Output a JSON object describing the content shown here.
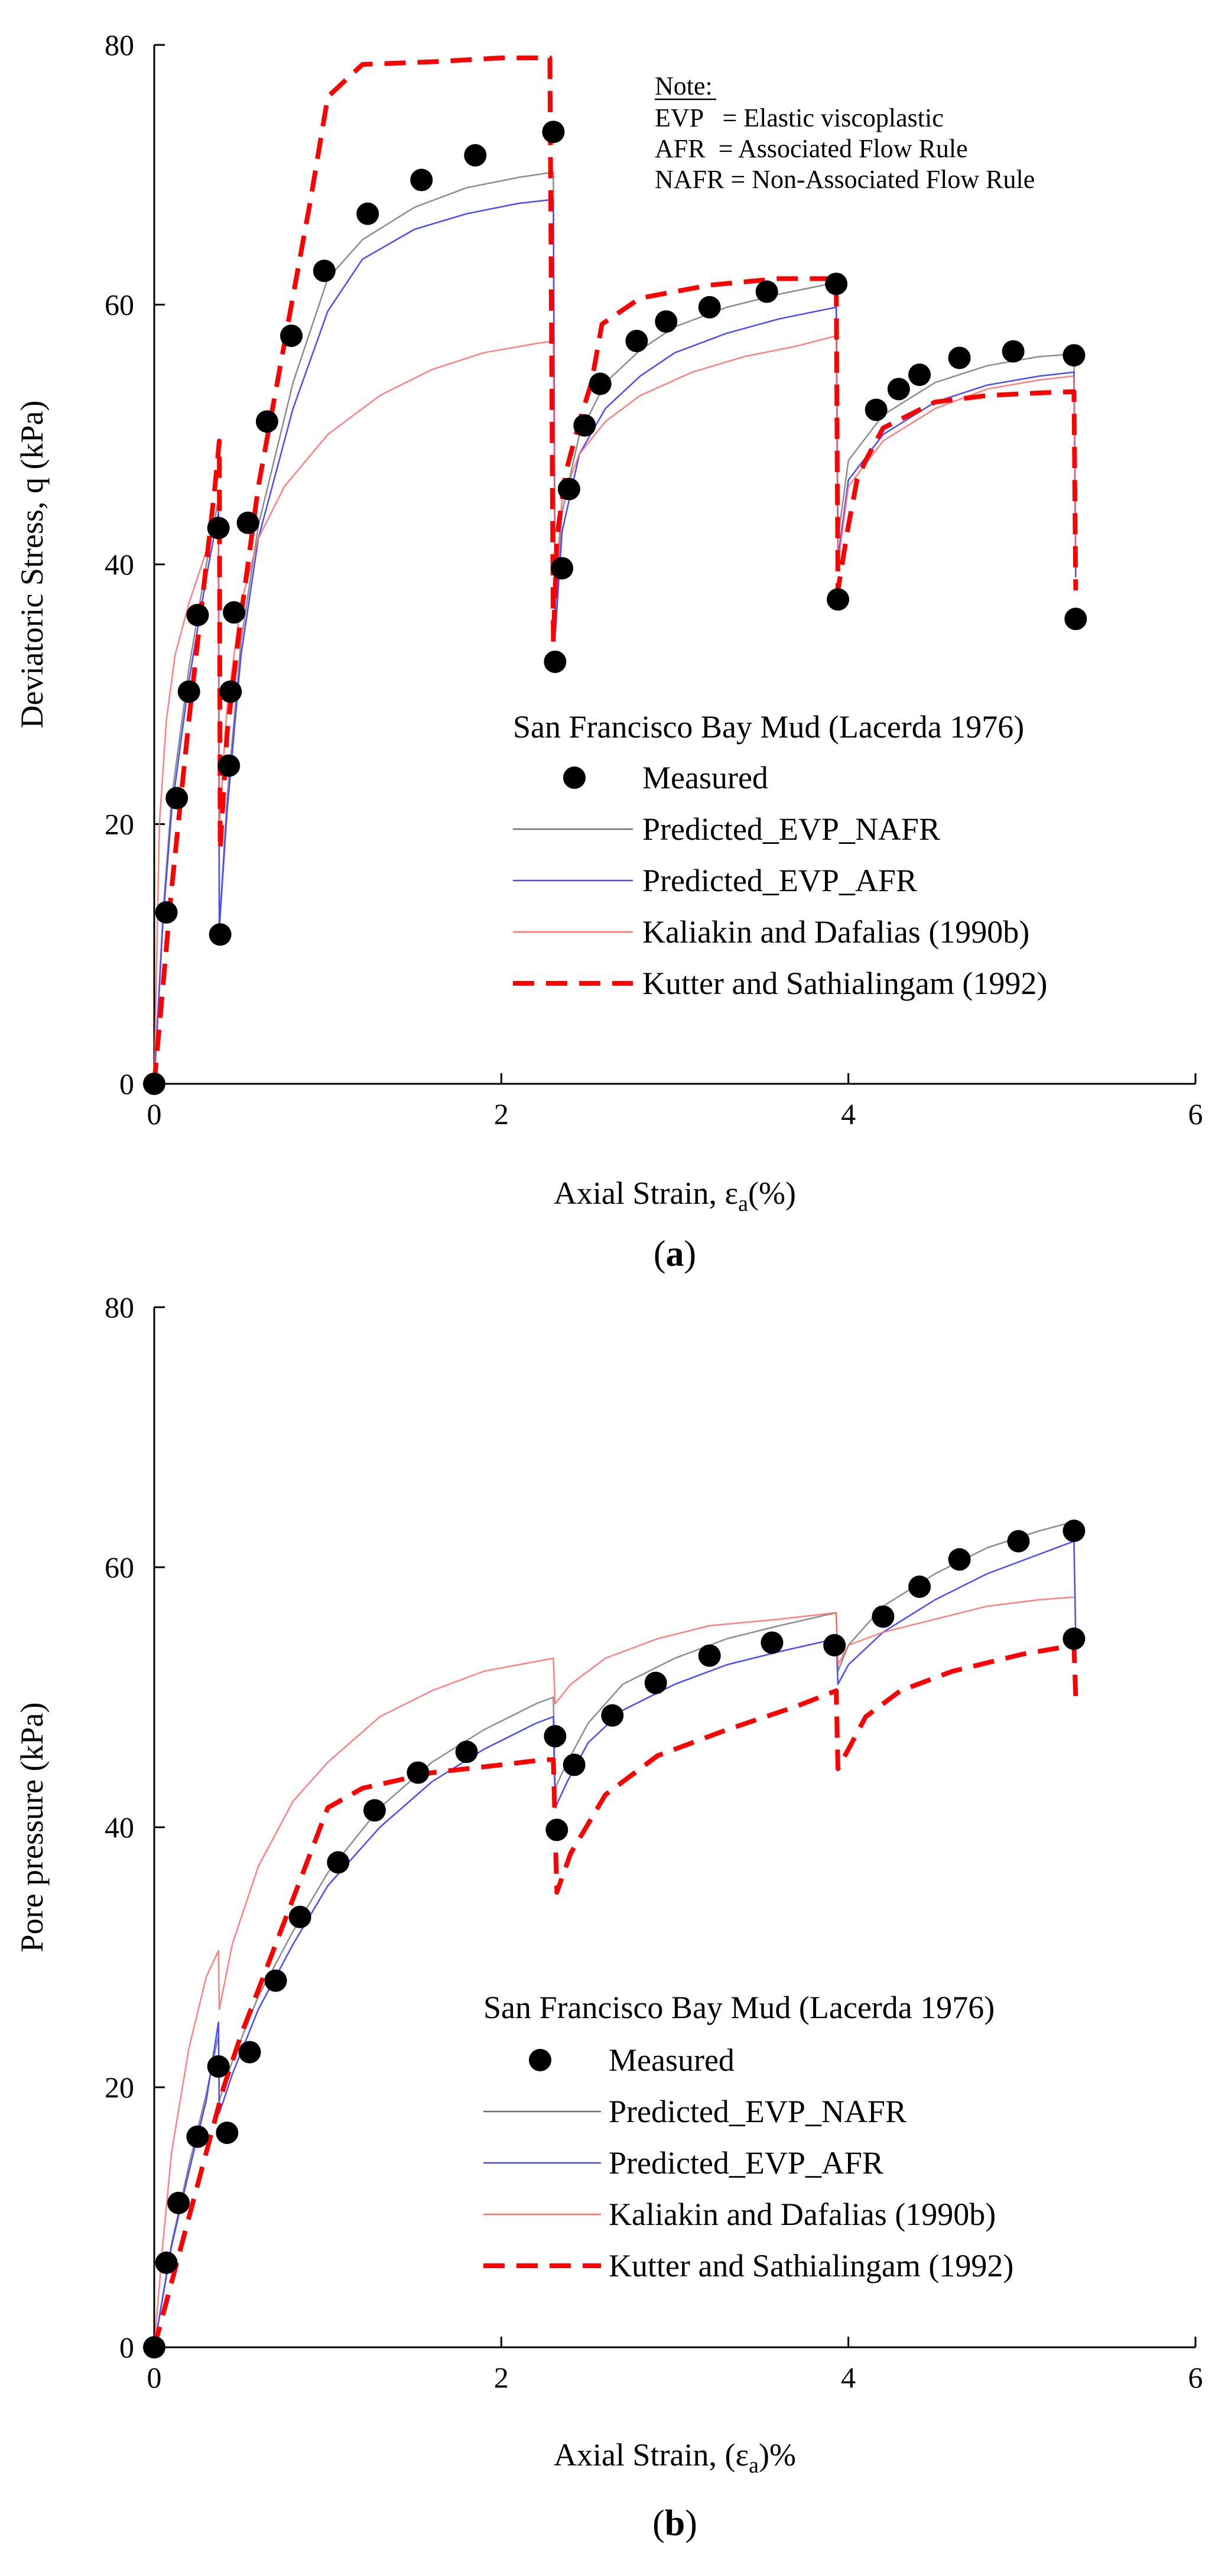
{
  "colors": {
    "measured": "#000000",
    "evp_nafr": "#707070",
    "evp_afr": "#4a4aff",
    "kaliakin": "#ff6a6a",
    "kutter": "#ff0000"
  },
  "chart_data": [
    {
      "id": "a",
      "type": "line",
      "panel_label": "(a)",
      "panel_letter": "a",
      "xlabel_prefix": "Axial Strain, ε",
      "xlabel_sub": "a",
      "xlabel_suffix": "(%)",
      "ylabel": "Deviatoric Stress, q (kPa)",
      "xlim": [
        0,
        6
      ],
      "ylim": [
        0,
        80
      ],
      "xticks": [
        0,
        2,
        4,
        6
      ],
      "yticks": [
        0,
        20,
        40,
        60,
        80
      ],
      "note": {
        "title": "Note:",
        "lines": [
          "EVP   = Elastic viscoplastic",
          "AFR  = Associated Flow Rule",
          "NAFR = Non-Associated Flow Rule"
        ]
      },
      "legend_title": "San Francisco Bay Mud (Lacerda 1976)",
      "series": [
        {
          "name": "Measured",
          "style": "marker",
          "color_key": "measured",
          "x": [
            0,
            0.07,
            0.13,
            0.2,
            0.25,
            0.37,
            0.38,
            0.43,
            0.44,
            0.46,
            0.54,
            0.65,
            0.79,
            0.98,
            1.23,
            1.54,
            1.85,
            2.3,
            2.31,
            2.35,
            2.39,
            2.48,
            2.57,
            2.78,
            2.95,
            3.2,
            3.53,
            3.93,
            3.94,
            4.16,
            4.29,
            4.41,
            4.64,
            4.95,
            5.3,
            5.31
          ],
          "y": [
            0,
            13.2,
            22,
            30.2,
            36.1,
            42.8,
            11.5,
            24.5,
            30.2,
            36.3,
            43.2,
            51,
            57.6,
            62.6,
            67,
            69.6,
            71.5,
            73.3,
            32.5,
            39.7,
            45.8,
            50.7,
            53.9,
            57.2,
            58.7,
            59.8,
            61,
            61.6,
            37.3,
            51.9,
            53.5,
            54.6,
            55.9,
            56.4,
            56.1,
            35.8
          ]
        },
        {
          "name": "Predicted_EVP_NAFR",
          "style": "thin",
          "color_key": "evp_nafr",
          "x": [
            0,
            0.05,
            0.1,
            0.2,
            0.3,
            0.37,
            0.375,
            0.42,
            0.5,
            0.6,
            0.8,
            1.0,
            1.2,
            1.5,
            1.8,
            2.1,
            2.3,
            2.31,
            2.35,
            2.45,
            2.6,
            2.8,
            3.0,
            3.3,
            3.6,
            3.93,
            3.94,
            4.0,
            4.2,
            4.5,
            4.8,
            5.1,
            5.3,
            5.31
          ],
          "y": [
            0,
            13,
            22,
            32,
            40,
            45,
            12,
            22,
            34,
            43,
            54,
            62,
            65,
            67.5,
            69,
            69.8,
            70.2,
            36,
            44,
            50,
            54,
            56.5,
            58.3,
            59.8,
            60.8,
            61.7,
            42,
            48,
            51.5,
            54,
            55.3,
            56,
            56.2,
            40
          ],
          "opacity": 0.8
        },
        {
          "name": "Predicted_EVP_AFR",
          "style": "thin",
          "color_key": "evp_afr",
          "x": [
            0,
            0.05,
            0.1,
            0.2,
            0.3,
            0.37,
            0.375,
            0.42,
            0.5,
            0.6,
            0.8,
            1.0,
            1.2,
            1.5,
            1.8,
            2.1,
            2.3,
            2.31,
            2.35,
            2.45,
            2.6,
            2.8,
            3.0,
            3.3,
            3.6,
            3.93,
            3.94,
            4.0,
            4.2,
            4.5,
            4.8,
            5.1,
            5.3,
            5.31
          ],
          "y": [
            0,
            12.5,
            21,
            31,
            39,
            44,
            12,
            21,
            33,
            42,
            52,
            59.5,
            63.5,
            65.8,
            67,
            67.8,
            68.1,
            34.5,
            42.5,
            48.5,
            52,
            54.5,
            56.3,
            57.8,
            58.9,
            59.8,
            40.5,
            46.5,
            50,
            52.5,
            53.8,
            54.5,
            54.8,
            39
          ]
        },
        {
          "name": "Kaliakin and Dafalias (1990b)",
          "style": "thin",
          "color_key": "kaliakin",
          "x": [
            0,
            0.03,
            0.07,
            0.12,
            0.2,
            0.3,
            0.37,
            0.375,
            0.42,
            0.5,
            0.6,
            0.75,
            1.0,
            1.3,
            1.6,
            1.9,
            2.2,
            2.3,
            2.31,
            2.35,
            2.45,
            2.6,
            2.8,
            3.1,
            3.4,
            3.7,
            3.93,
            3.94,
            4.0,
            4.2,
            4.5,
            4.8,
            5.1,
            5.3,
            5.31
          ],
          "y": [
            0,
            20,
            28,
            33,
            37,
            41,
            43.5,
            20,
            29,
            37,
            42,
            46,
            50,
            53,
            55,
            56.3,
            57,
            57.2,
            38,
            45,
            48.5,
            51,
            53,
            54.8,
            56,
            56.8,
            57.6,
            40,
            46,
            49.5,
            52,
            53.5,
            54.2,
            54.5,
            40
          ],
          "opacity": 0.85
        },
        {
          "name": "Kutter and Sathialingam (1992)",
          "style": "dashed",
          "color_key": "kutter",
          "x": [
            0,
            0.1,
            0.2,
            0.3,
            0.35,
            0.375,
            0.38,
            0.42,
            0.5,
            0.6,
            0.75,
            0.9,
            1.0,
            1.2,
            1.6,
            2.0,
            2.28,
            2.3,
            2.32,
            2.37,
            2.45,
            2.52,
            2.58,
            2.8,
            3.2,
            3.6,
            3.93,
            3.94,
            4.0,
            4.05,
            4.1,
            4.2,
            4.5,
            4.8,
            5.1,
            5.3,
            5.31
          ],
          "y": [
            0,
            15,
            28,
            40,
            46,
            49.5,
            18,
            27,
            36,
            46,
            57,
            68,
            76,
            78.5,
            78.7,
            79,
            79,
            34,
            42,
            47,
            51,
            54,
            58.5,
            60.5,
            61.5,
            62,
            62,
            38,
            43,
            46.5,
            48,
            50.5,
            52.5,
            53,
            53.2,
            53.3,
            38
          ]
        }
      ]
    },
    {
      "id": "b",
      "type": "line",
      "panel_label": "(b)",
      "panel_letter": "b",
      "xlabel_prefix": "Axial Strain, (ε",
      "xlabel_sub": "a",
      "xlabel_suffix": ")%",
      "ylabel": "Pore pressure (kPa)",
      "xlim": [
        0,
        6
      ],
      "ylim": [
        0,
        80
      ],
      "xticks": [
        0,
        2,
        4,
        6
      ],
      "yticks": [
        0,
        20,
        40,
        60,
        80
      ],
      "legend_title": "San Francisco Bay Mud (Lacerda 1976)",
      "series": [
        {
          "name": "Measured",
          "style": "marker",
          "color_key": "measured",
          "x": [
            0,
            0.07,
            0.14,
            0.25,
            0.37,
            0.42,
            0.55,
            0.7,
            0.84,
            1.06,
            1.27,
            1.52,
            1.8,
            2.31,
            2.32,
            2.42,
            2.64,
            2.89,
            3.2,
            3.56,
            3.92,
            4.2,
            4.41,
            4.64,
            4.98,
            5.3,
            5.3
          ],
          "y": [
            0,
            6.5,
            11.1,
            16.2,
            21.6,
            16.5,
            22.7,
            28.2,
            33.1,
            37.3,
            41.3,
            44.2,
            45.8,
            47,
            39.8,
            44.8,
            48.6,
            51.1,
            53.2,
            54.2,
            54,
            56.2,
            58.5,
            60.6,
            62,
            62.8,
            54.5
          ]
        },
        {
          "name": "Predicted_EVP_NAFR",
          "style": "thin",
          "color_key": "evp_nafr",
          "x": [
            0,
            0.1,
            0.2,
            0.3,
            0.37,
            0.375,
            0.45,
            0.6,
            0.8,
            1.0,
            1.3,
            1.6,
            1.9,
            2.2,
            2.3,
            2.31,
            2.38,
            2.5,
            2.7,
            3.0,
            3.3,
            3.6,
            3.93,
            3.94,
            4.0,
            4.2,
            4.5,
            4.8,
            5.1,
            5.3
          ],
          "y": [
            0,
            8,
            14,
            19.5,
            24,
            19,
            22,
            27,
            32,
            36.5,
            41.5,
            45,
            47.5,
            49.5,
            50,
            43,
            45,
            48,
            51,
            53,
            54.5,
            55.5,
            56.5,
            52,
            54,
            57,
            59.5,
            61.5,
            62.8,
            63.5
          ],
          "opacity": 0.8
        },
        {
          "name": "Predicted_EVP_AFR",
          "style": "thin",
          "color_key": "evp_afr",
          "x": [
            0,
            0.1,
            0.2,
            0.3,
            0.37,
            0.375,
            0.45,
            0.6,
            0.8,
            1.0,
            1.3,
            1.6,
            1.9,
            2.2,
            2.3,
            2.31,
            2.38,
            2.5,
            2.7,
            3.0,
            3.3,
            3.6,
            3.93,
            3.94,
            4.0,
            4.2,
            4.5,
            4.8,
            5.1,
            5.3,
            5.31
          ],
          "y": [
            0,
            7.8,
            13.5,
            19,
            25,
            18,
            21,
            26,
            31,
            35.5,
            40,
            43.5,
            46,
            48,
            48.5,
            41.5,
            43.5,
            46.5,
            49,
            51,
            52.5,
            53.5,
            54.5,
            51,
            52.5,
            55,
            57.5,
            59.5,
            61,
            62,
            54.5
          ]
        },
        {
          "name": "Kaliakin and Dafalias (1990b)",
          "style": "thin",
          "color_key": "kaliakin",
          "x": [
            0,
            0.05,
            0.1,
            0.2,
            0.3,
            0.37,
            0.375,
            0.45,
            0.6,
            0.8,
            1.0,
            1.3,
            1.6,
            1.9,
            2.3,
            2.31,
            2.4,
            2.6,
            2.9,
            3.2,
            3.6,
            3.93,
            3.94,
            4.0,
            4.2,
            4.5,
            4.8,
            5.1,
            5.3
          ],
          "y": [
            0,
            8,
            15,
            23,
            28.5,
            30.5,
            26,
            31,
            37,
            42,
            45,
            48.5,
            50.5,
            52,
            53,
            49.5,
            51,
            53,
            54.5,
            55.5,
            56,
            56.5,
            52.5,
            54,
            55,
            56,
            57,
            57.5,
            57.7
          ],
          "opacity": 0.85
        },
        {
          "name": "Kutter and Sathialingam (1992)",
          "style": "dashed",
          "color_key": "kutter",
          "x": [
            0,
            0.1,
            0.2,
            0.3,
            0.4,
            0.5,
            0.7,
            0.9,
            1.0,
            1.2,
            1.6,
            2.0,
            2.25,
            2.3,
            2.32,
            2.4,
            2.6,
            2.9,
            3.3,
            3.7,
            3.93,
            3.94,
            4.0,
            4.1,
            4.3,
            4.6,
            5.0,
            5.3,
            5.31
          ],
          "y": [
            0,
            5,
            10,
            15,
            20,
            24,
            31,
            38,
            41.5,
            43,
            44.2,
            44.8,
            45.2,
            45.2,
            35,
            38,
            42.5,
            45.5,
            47.5,
            49.3,
            50.5,
            44.5,
            46,
            48.5,
            50.5,
            52,
            53.3,
            54,
            50
          ]
        }
      ]
    }
  ]
}
